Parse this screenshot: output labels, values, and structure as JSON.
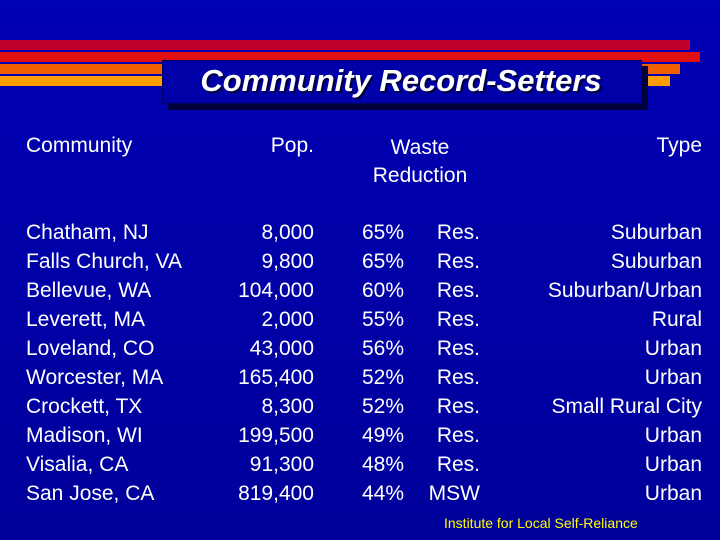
{
  "slide": {
    "title": "Community Record-Setters",
    "accent_colors": [
      "#c0002a",
      "#e01010",
      "#f06000",
      "#ff9c00"
    ]
  },
  "table": {
    "headers": {
      "community": "Community",
      "pop": "Pop.",
      "waste_line1": "Waste",
      "waste_line2": "Reduction",
      "type": "Type"
    },
    "rows": [
      {
        "community": "Chatham, NJ",
        "pop": "8,000",
        "reduction": "65%",
        "basis": "Res.",
        "type": "Suburban"
      },
      {
        "community": "Falls Church, VA",
        "pop": "9,800",
        "reduction": "65%",
        "basis": "Res.",
        "type": "Suburban"
      },
      {
        "community": "Bellevue, WA",
        "pop": "104,000",
        "reduction": "60%",
        "basis": "Res.",
        "type": "Suburban/Urban"
      },
      {
        "community": "Leverett, MA",
        "pop": "2,000",
        "reduction": "55%",
        "basis": "Res.",
        "type": "Rural"
      },
      {
        "community": "Loveland, CO",
        "pop": "43,000",
        "reduction": "56%",
        "basis": "Res.",
        "type": "Urban"
      },
      {
        "community": "Worcester, MA",
        "pop": "165,400",
        "reduction": "52%",
        "basis": "Res.",
        "type": "Urban"
      },
      {
        "community": "Crockett, TX",
        "pop": "8,300",
        "reduction": "52%",
        "basis": "Res.",
        "type": "Small Rural City"
      },
      {
        "community": "Madison, WI",
        "pop": "199,500",
        "reduction": "49%",
        "basis": "Res.",
        "type": "Urban"
      },
      {
        "community": "Visalia, CA",
        "pop": "91,300",
        "reduction": "48%",
        "basis": "Res.",
        "type": "Urban"
      },
      {
        "community": "San Jose, CA",
        "pop": "819,400",
        "reduction": "44%",
        "basis": "MSW",
        "type": "Urban"
      }
    ]
  },
  "footer": {
    "source": "Institute for Local Self-Reliance"
  }
}
